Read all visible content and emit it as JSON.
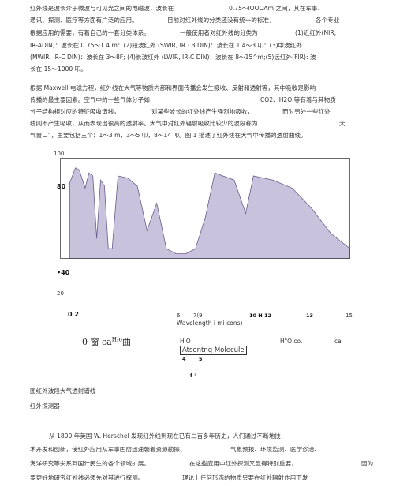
{
  "para1": {
    "l1": [
      "红外线是波长介于微波与可见光之间的电磁波，波长在",
      "0.75～lOOOAm 之间，其在军事、"
    ],
    "l2": [
      "通讯、探测、医疗等方面有广泛的应用。",
      "目前对红外线的分类还没有统一的标准，",
      "各个专业"
    ],
    "l3": [
      "根据应用的需要，有着自己的一套分类体系。",
      "一般使用者对红外线的分类为",
      "(1)近红外(NIR,"
    ],
    "l4": [
      "IR-ADIN)：波长在 0.75～1.4 m：(2)短波红外 (SWIR, IR · B DIN)：波长在 1.4～3 叩：(3)中波红外"
    ],
    "l5": [
      "(MWIR, IR-C DIN)：波长在  3～8F; (4)长波红外 (LWIR, IR-C DIN)：波长在   8～15^m;(5)远红外(FIR): 波"
    ],
    "l6": [
      "长在 15～1000 叩。"
    ]
  },
  "para2": {
    "l1": [
      "根据 Maxwell 电磁方程，红外线在大气等物质内部和界面传播会发生吸收、反射和透射等，其中吸收是影响"
    ],
    "l2": [
      "传播的最主要因素。空气中的一些气体分子如",
      "CO2、H2O 等有着与其物质"
    ],
    "l3": [
      "分子结构相对应的特征吸收谱线，",
      "对某些波长的红外线产生强烈地吸收，",
      "而对另外一些红外"
    ],
    "l4": [
      "线则不产生吸收，从而表现出很高的透射率。大气中对红外辐射吸收比较少的波段称为",
      "大"
    ],
    "l5": [
      "气窗口”，主要包括三个：1～3 m，3～5 叩，8～14 叩。图 1 描述了红外线在大气中传播的透射曲线。"
    ]
  },
  "figure": {
    "y_tick_100": "100",
    "y_tick_80": "80",
    "y_tick_40": "•40",
    "y_tick_20": "20",
    "x_tick_02": "0 2",
    "x_tick_6": "6",
    "x_tick_79": "7(9",
    "x_tick_1012": "10 H 12",
    "x_tick_13": "13",
    "x_tick_15": "15",
    "xlabel": "Wavelength i mi cons)",
    "window_label": "0 窗 ca",
    "window_sup": "H₂o",
    "window_tail": "曲",
    "hio_label": "HiO",
    "hco_label": "H\"O co.",
    "ca_label": "ca",
    "molecule_label": "Atsontnq Molecule",
    "tick_4": "4",
    "tick_5": "5",
    "f_label": "f °"
  },
  "chart_data": {
    "type": "area",
    "xlabel": "Wavelength i mi cons)",
    "x": [
      0.5,
      0.8,
      1.0,
      1.3,
      1.5,
      1.7,
      1.9,
      2.1,
      2.3,
      2.5,
      2.7,
      3.0,
      3.5,
      4.0,
      4.5,
      5.0,
      5.5,
      6.0,
      6.5,
      7.0,
      7.5,
      8.0,
      9.0,
      9.6,
      10.0,
      11.0,
      12.0,
      13.0,
      14.0,
      15.0
    ],
    "values": [
      75,
      90,
      88,
      70,
      85,
      82,
      20,
      78,
      72,
      10,
      10,
      82,
      80,
      72,
      28,
      55,
      10,
      5,
      5,
      10,
      40,
      85,
      78,
      45,
      82,
      78,
      70,
      50,
      25,
      10
    ],
    "ylim": [
      0,
      100
    ],
    "xlim": [
      0,
      15
    ],
    "grid": false
  },
  "captions": {
    "fig_caption": "图红外波段大气透射谱线",
    "section_title": "红外探测器"
  },
  "para3": {
    "l1": [
      "从 1800 年英国 W. Herschel 发现红外线到现在已有二百多年历史，人们通过不断地技"
    ],
    "l2": [
      "术开发和创新，使红外应用从军事国防迅速朝着资源勘探、",
      "气象预报、环境监测、医学诊治、"
    ],
    "l3": [
      "海洋研究等尖系到国计民生的各个领域扩展。",
      "在这些应用中红外探测又显得特别重要，",
      "因为"
    ],
    "l4": [
      "要更好地研究红外线必须先对其进行探测。",
      "理论上任何形态的物质只要在红外辐射作用下发"
    ]
  }
}
